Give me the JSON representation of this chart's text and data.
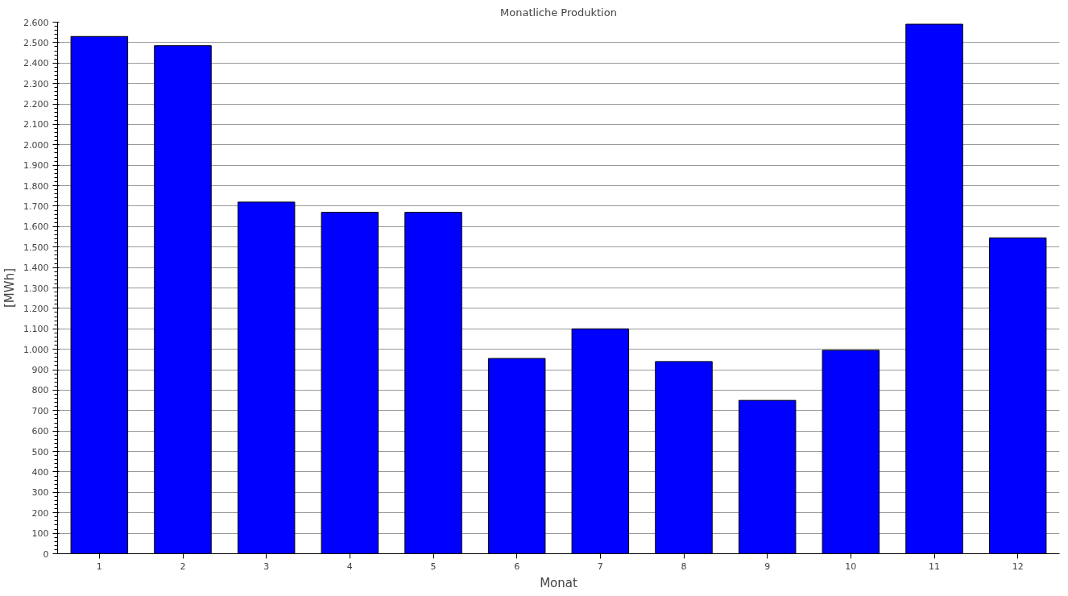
{
  "chart_data": {
    "type": "bar",
    "title": "Monatliche Produktion",
    "xlabel": "Monat",
    "ylabel": "[MWh]",
    "categories": [
      "1",
      "2",
      "3",
      "4",
      "5",
      "6",
      "7",
      "8",
      "9",
      "10",
      "11",
      "12"
    ],
    "values": [
      2530,
      2485,
      1720,
      1670,
      1670,
      955,
      1100,
      940,
      750,
      995,
      2590,
      1545
    ],
    "color": "#0000ff",
    "ylim": [
      0,
      2600
    ],
    "yticks": [
      0,
      100,
      200,
      300,
      400,
      500,
      600,
      700,
      800,
      900,
      {
        "value": 1000,
        "label": "1.000"
      },
      {
        "value": 1100,
        "label": "1.100"
      },
      {
        "value": 1200,
        "label": "1.200"
      },
      {
        "value": 1300,
        "label": "1.300"
      },
      {
        "value": 1400,
        "label": "1.400"
      },
      {
        "value": 1500,
        "label": "1.500"
      },
      {
        "value": 1600,
        "label": "1.600"
      },
      {
        "value": 1700,
        "label": "1.700"
      },
      {
        "value": 1800,
        "label": "1.800"
      },
      {
        "value": 1900,
        "label": "1.900"
      },
      {
        "value": 2000,
        "label": "2.000"
      },
      {
        "value": 2100,
        "label": "2.100"
      },
      {
        "value": 2200,
        "label": "2.200"
      },
      {
        "value": 2300,
        "label": "2.300"
      },
      {
        "value": 2400,
        "label": "2.400"
      },
      {
        "value": 2500,
        "label": "2.500"
      },
      {
        "value": 2600,
        "label": "2.600"
      }
    ],
    "grid": "y"
  }
}
